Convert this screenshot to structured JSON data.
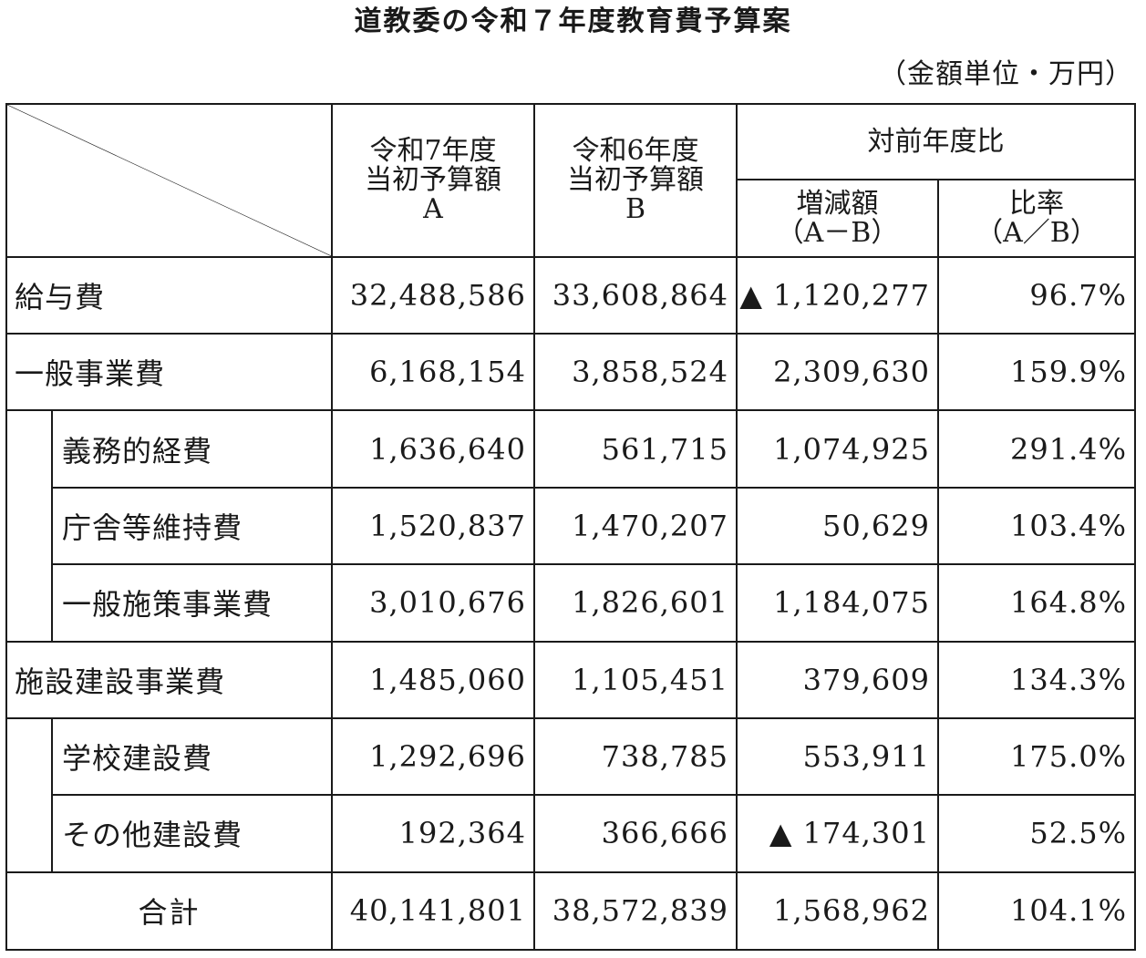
{
  "title": "道教委の令和７年度教育費予算案",
  "unit": "（金額単位・万円）",
  "header": {
    "col_a": [
      "令和7年度",
      "当初予算額",
      "A"
    ],
    "col_b": [
      "令和6年度",
      "当初予算額",
      "B"
    ],
    "group": "対前年度比",
    "diff": [
      "増減額",
      "（A－B）"
    ],
    "ratio": [
      "比率",
      "（A／B）"
    ]
  },
  "rows": [
    {
      "label": "給与費",
      "a": "32,488,586",
      "b": "33,608,864",
      "diff": "▲ 1,120,277",
      "ratio": "96.7%"
    },
    {
      "label": "一般事業費",
      "a": "6,168,154",
      "b": "3,858,524",
      "diff": "2,309,630",
      "ratio": "159.9%"
    },
    {
      "label": "義務的経費",
      "a": "1,636,640",
      "b": "561,715",
      "diff": "1,074,925",
      "ratio": "291.4%"
    },
    {
      "label": "庁舎等維持費",
      "a": "1,520,837",
      "b": "1,470,207",
      "diff": "50,629",
      "ratio": "103.4%"
    },
    {
      "label": "一般施策事業費",
      "a": "3,010,676",
      "b": "1,826,601",
      "diff": "1,184,075",
      "ratio": "164.8%"
    },
    {
      "label": "施設建設事業費",
      "a": "1,485,060",
      "b": "1,105,451",
      "diff": "379,609",
      "ratio": "134.3%"
    },
    {
      "label": "学校建設費",
      "a": "1,292,696",
      "b": "738,785",
      "diff": "553,911",
      "ratio": "175.0%"
    },
    {
      "label": "その他建設費",
      "a": "192,364",
      "b": "366,666",
      "diff": "▲ 174,301",
      "ratio": "52.5%"
    },
    {
      "label": "合計",
      "a": "40,141,801",
      "b": "38,572,839",
      "diff": "1,568,962",
      "ratio": "104.1%"
    }
  ]
}
